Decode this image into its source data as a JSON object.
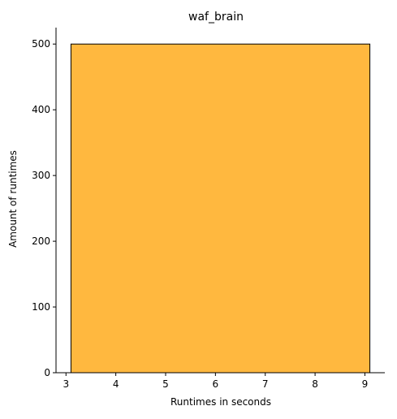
{
  "chart_data": {
    "type": "histogram",
    "title": "waf_brain",
    "xlabel": "Runtimes in seconds",
    "ylabel": "Amount of runtimes",
    "bins": [
      {
        "x_start": 3.1,
        "x_end": 9.1,
        "count": 500
      }
    ],
    "xlim": [
      2.8,
      9.4
    ],
    "ylim": [
      0,
      525
    ],
    "xticks": [
      3,
      4,
      5,
      6,
      7,
      8,
      9
    ],
    "yticks": [
      0,
      100,
      200,
      300,
      400,
      500
    ],
    "grid": false,
    "bar_color": "#ffb83f",
    "edge_color": "#000000",
    "axis_color": "#000000"
  }
}
